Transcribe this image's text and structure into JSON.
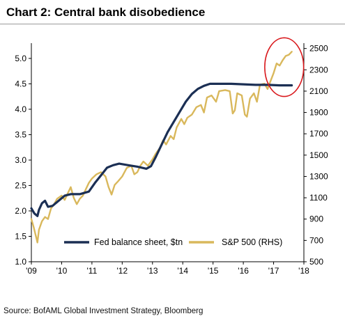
{
  "title": "Chart 2: Central bank disobedience",
  "source": "Source: BofAML Global Investment Strategy, Bloomberg",
  "chart_data": {
    "type": "line",
    "x_ticks": [
      "'09",
      "'10",
      "'11",
      "'12",
      "'13",
      "'14",
      "'15",
      "'16",
      "'17",
      "'18"
    ],
    "xlim": [
      2009,
      2018
    ],
    "y_left": {
      "lim": [
        1.0,
        5.3
      ],
      "ticks": [
        "1.0",
        "1.5",
        "2.0",
        "2.5",
        "3.0",
        "3.5",
        "4.0",
        "4.5",
        "5.0"
      ]
    },
    "y_right": {
      "lim": [
        500,
        2550
      ],
      "ticks": [
        "500",
        "700",
        "900",
        "1100",
        "1300",
        "1500",
        "1700",
        "1900",
        "2100",
        "2300",
        "2500"
      ]
    },
    "legend_position": "bottom",
    "highlight": {
      "type": "circle",
      "color": "#d9181c",
      "x_range": [
        2016.8,
        2017.9
      ],
      "y_right_range": [
        2050,
        2600
      ]
    },
    "series": [
      {
        "name": "Fed balance sheet, $tn",
        "axis": "left",
        "color": "#1b2f54",
        "points": [
          [
            2009.0,
            2.05
          ],
          [
            2009.1,
            1.95
          ],
          [
            2009.2,
            1.9
          ],
          [
            2009.25,
            2.02
          ],
          [
            2009.35,
            2.15
          ],
          [
            2009.45,
            2.2
          ],
          [
            2009.55,
            2.08
          ],
          [
            2009.7,
            2.1
          ],
          [
            2009.9,
            2.2
          ],
          [
            2010.1,
            2.3
          ],
          [
            2010.3,
            2.33
          ],
          [
            2010.6,
            2.33
          ],
          [
            2010.9,
            2.38
          ],
          [
            2011.1,
            2.55
          ],
          [
            2011.3,
            2.7
          ],
          [
            2011.5,
            2.85
          ],
          [
            2011.7,
            2.9
          ],
          [
            2011.9,
            2.93
          ],
          [
            2012.2,
            2.9
          ],
          [
            2012.5,
            2.87
          ],
          [
            2012.8,
            2.83
          ],
          [
            2012.95,
            2.88
          ],
          [
            2013.1,
            3.05
          ],
          [
            2013.3,
            3.3
          ],
          [
            2013.5,
            3.55
          ],
          [
            2013.7,
            3.75
          ],
          [
            2013.9,
            3.95
          ],
          [
            2014.1,
            4.15
          ],
          [
            2014.3,
            4.3
          ],
          [
            2014.5,
            4.4
          ],
          [
            2014.7,
            4.46
          ],
          [
            2014.9,
            4.5
          ],
          [
            2015.2,
            4.5
          ],
          [
            2015.6,
            4.5
          ],
          [
            2016.0,
            4.49
          ],
          [
            2016.4,
            4.48
          ],
          [
            2016.8,
            4.48
          ],
          [
            2017.2,
            4.47
          ],
          [
            2017.6,
            4.47
          ]
        ]
      },
      {
        "name": "S&P 500 (RHS)",
        "axis": "right",
        "color": "#d9b85c",
        "points": [
          [
            2009.0,
            900
          ],
          [
            2009.08,
            820
          ],
          [
            2009.15,
            740
          ],
          [
            2009.2,
            680
          ],
          [
            2009.25,
            800
          ],
          [
            2009.35,
            880
          ],
          [
            2009.45,
            920
          ],
          [
            2009.55,
            900
          ],
          [
            2009.65,
            1000
          ],
          [
            2009.75,
            1040
          ],
          [
            2009.85,
            1090
          ],
          [
            2010.0,
            1120
          ],
          [
            2010.1,
            1080
          ],
          [
            2010.2,
            1140
          ],
          [
            2010.3,
            1200
          ],
          [
            2010.4,
            1100
          ],
          [
            2010.5,
            1040
          ],
          [
            2010.6,
            1090
          ],
          [
            2010.7,
            1120
          ],
          [
            2010.8,
            1180
          ],
          [
            2010.9,
            1240
          ],
          [
            2011.0,
            1280
          ],
          [
            2011.15,
            1320
          ],
          [
            2011.3,
            1340
          ],
          [
            2011.45,
            1300
          ],
          [
            2011.55,
            1200
          ],
          [
            2011.65,
            1130
          ],
          [
            2011.75,
            1220
          ],
          [
            2011.85,
            1250
          ],
          [
            2012.0,
            1300
          ],
          [
            2012.15,
            1380
          ],
          [
            2012.3,
            1400
          ],
          [
            2012.4,
            1320
          ],
          [
            2012.5,
            1340
          ],
          [
            2012.6,
            1400
          ],
          [
            2012.7,
            1440
          ],
          [
            2012.85,
            1400
          ],
          [
            2013.0,
            1460
          ],
          [
            2013.1,
            1510
          ],
          [
            2013.25,
            1570
          ],
          [
            2013.35,
            1640
          ],
          [
            2013.45,
            1600
          ],
          [
            2013.6,
            1680
          ],
          [
            2013.7,
            1650
          ],
          [
            2013.8,
            1760
          ],
          [
            2013.95,
            1840
          ],
          [
            2014.05,
            1790
          ],
          [
            2014.15,
            1850
          ],
          [
            2014.3,
            1880
          ],
          [
            2014.45,
            1950
          ],
          [
            2014.6,
            1970
          ],
          [
            2014.7,
            1900
          ],
          [
            2014.8,
            2040
          ],
          [
            2014.95,
            2060
          ],
          [
            2015.1,
            2000
          ],
          [
            2015.2,
            2100
          ],
          [
            2015.4,
            2110
          ],
          [
            2015.55,
            2100
          ],
          [
            2015.65,
            1890
          ],
          [
            2015.72,
            1920
          ],
          [
            2015.8,
            2080
          ],
          [
            2015.95,
            2060
          ],
          [
            2016.05,
            1880
          ],
          [
            2016.12,
            1860
          ],
          [
            2016.22,
            2030
          ],
          [
            2016.35,
            2080
          ],
          [
            2016.45,
            2000
          ],
          [
            2016.55,
            2160
          ],
          [
            2016.7,
            2170
          ],
          [
            2016.8,
            2120
          ],
          [
            2016.88,
            2180
          ],
          [
            2017.0,
            2270
          ],
          [
            2017.1,
            2360
          ],
          [
            2017.2,
            2340
          ],
          [
            2017.3,
            2390
          ],
          [
            2017.4,
            2430
          ],
          [
            2017.5,
            2440
          ],
          [
            2017.6,
            2470
          ]
        ]
      }
    ]
  }
}
